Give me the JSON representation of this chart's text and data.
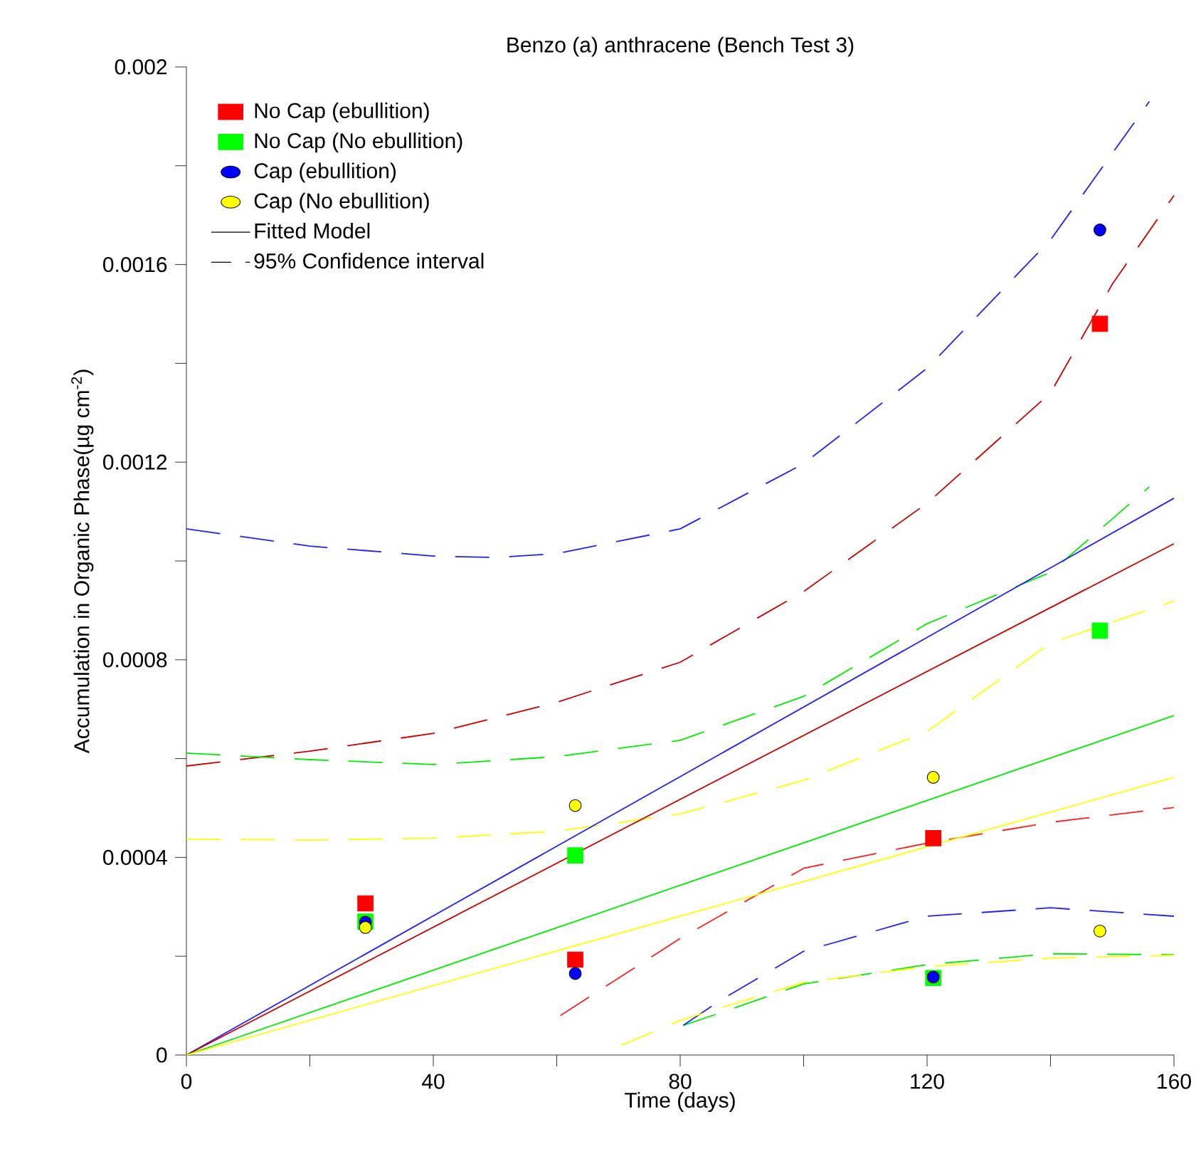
{
  "chart_data": {
    "type": "scatter",
    "title": "Benzo (a) anthracene (Bench Test 3)",
    "xlabel": "Time (days)",
    "ylabel": "Accumulation in Organic Phase(µg cm$^{-2}$)",
    "annotations": [
      "Fitted Model",
      "95% Confidence interval"
    ],
    "x": [
      29,
      63,
      121,
      148
    ],
    "xlim": [
      0,
      160
    ],
    "ylim": [
      0,
      0.002
    ],
    "xticks": [
      0,
      {
        "value": 20,
        "label": null
      },
      40,
      {
        "value": 60,
        "label": null
      },
      80,
      {
        "value": 100,
        "label": null
      },
      120,
      {
        "value": 140,
        "label": null
      },
      160
    ],
    "yticks": [
      0,
      {
        "value": 0.0002,
        "label": null
      },
      0.0004,
      {
        "value": 0.0006,
        "label": null
      },
      0.0008,
      {
        "value": 0.001,
        "label": null
      },
      0.0012,
      {
        "value": 0.0014,
        "label": null
      },
      0.0016,
      {
        "value": 0.0018,
        "label": null
      },
      0.002
    ],
    "legend": "top left",
    "grid": false,
    "series": [
      {
        "type": "line",
        "line_style": "dashed",
        "color": "#cc0000",
        "x": [
          0,
          20,
          40,
          60,
          80,
          100,
          120,
          140,
          150,
          160
        ],
        "values": [
          0.000585,
          0.000615,
          0.000651,
          0.000714,
          0.000795,
          0.000938,
          0.001117,
          0.00134,
          0.00156,
          0.00174
        ]
      },
      {
        "type": "line",
        "line_style": "dashed",
        "color": "#ff2020",
        "x": [
          60.6,
          80,
          100,
          120,
          140,
          160
        ],
        "values": [
          8e-05,
          0.000236,
          0.000378,
          0.000429,
          0.000471,
          0.000501
        ]
      },
      {
        "type": "line",
        "line_style": "dashed",
        "color": "#00ee00",
        "x": [
          0,
          20,
          40,
          60,
          80,
          100,
          120,
          140,
          156
        ],
        "values": [
          0.000611,
          0.000598,
          0.000588,
          0.000604,
          0.000637,
          0.000726,
          0.000873,
          0.000977,
          0.00115
        ]
      },
      {
        "type": "line",
        "line_style": "dashed",
        "color": "#00ee00",
        "x": [
          80.5,
          87.6,
          100,
          120,
          140,
          160
        ],
        "values": [
          6e-05,
          9e-05,
          0.000144,
          0.000183,
          0.000205,
          0.000203
        ]
      },
      {
        "type": "line",
        "line_style": "dashed",
        "color": "#2020ff",
        "x": [
          0,
          20,
          40,
          50,
          60,
          80,
          100,
          120,
          140,
          156
        ],
        "values": [
          0.001065,
          0.00103,
          0.00101,
          0.001007,
          0.001015,
          0.001065,
          0.001197,
          0.00139,
          0.00165,
          0.00193
        ]
      },
      {
        "type": "line",
        "line_style": "dashed",
        "color": "#2020ff",
        "x": [
          80.5,
          86.7,
          100,
          120,
          140,
          160
        ],
        "values": [
          6e-05,
          0.000112,
          0.00021,
          0.000281,
          0.000298,
          0.000281
        ]
      },
      {
        "type": "line",
        "line_style": "dashed",
        "color": "#ffff00",
        "x": [
          0,
          20,
          40,
          60,
          80,
          100,
          120,
          140,
          160
        ],
        "values": [
          0.000437,
          0.000435,
          0.000439,
          0.000453,
          0.000488,
          0.000556,
          0.000655,
          0.000834,
          0.000919
        ]
      },
      {
        "type": "line",
        "line_style": "dashed",
        "color": "#ffff00",
        "x": [
          70.5,
          80,
          100,
          120,
          140,
          160
        ],
        "values": [
          2e-05,
          7e-05,
          0.000147,
          0.000179,
          0.000196,
          0.000202
        ]
      },
      {
        "type": "line",
        "line_style": "solid",
        "color": "#2020ff",
        "x": [
          0,
          160
        ],
        "values": [
          0,
          0.001127
        ]
      },
      {
        "type": "line",
        "line_style": "solid",
        "color": "#cc0000",
        "x": [
          0,
          160
        ],
        "values": [
          0,
          0.001035
        ]
      },
      {
        "type": "line",
        "line_style": "solid",
        "color": "#00ee00",
        "x": [
          0,
          160
        ],
        "values": [
          0,
          0.000687
        ]
      },
      {
        "type": "line",
        "line_style": "solid",
        "color": "#ffff00",
        "x": [
          0,
          160
        ],
        "values": [
          0,
          0.000562
        ]
      },
      {
        "name": "No Cap (ebullition)",
        "marker": "square",
        "color": "#ff0000",
        "values": [
          0.000307,
          0.000193,
          0.000439,
          0.00148
        ]
      },
      {
        "name": "No Cap (No ebullition)",
        "marker": "square",
        "color": "#00ff00",
        "values": [
          0.00027,
          0.000404,
          0.000156,
          0.000859
        ]
      },
      {
        "name": "Cap (ebullition)",
        "marker": "circle",
        "color": "#0000ff",
        "values": [
          0.000269,
          0.000165,
          0.000158,
          0.00167
        ]
      },
      {
        "name": "Cap (No ebullition)",
        "marker": "circle",
        "color": "#ffff00",
        "values": [
          0.000258,
          0.000505,
          0.000562,
          0.000251
        ]
      }
    ]
  }
}
